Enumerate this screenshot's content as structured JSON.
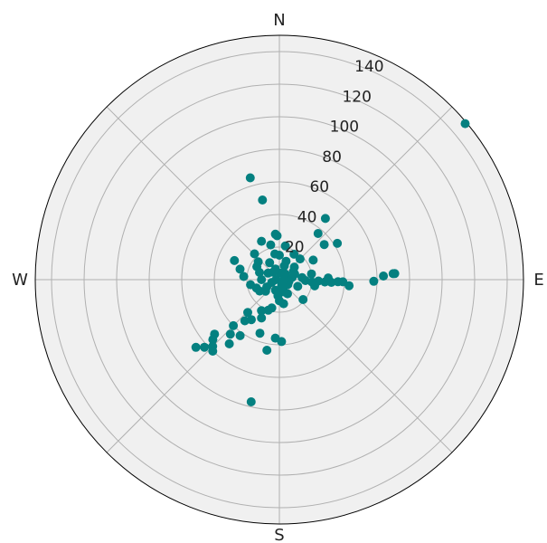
{
  "chart_data": {
    "type": "scatter",
    "projection": "polar",
    "theta_direction": "clockwise",
    "theta_zero": "north",
    "directions": {
      "n": "N",
      "e": "E",
      "s": "S",
      "w": "W"
    },
    "rmax": 150,
    "r_ticks": [
      20,
      40,
      60,
      80,
      100,
      120,
      140
    ],
    "r_tick_labels": [
      "20",
      "40",
      "60",
      "80",
      "100",
      "120",
      "140"
    ],
    "angle_gridlines_deg": [
      0,
      45,
      90,
      135,
      180,
      225,
      270,
      315
    ],
    "grid": true,
    "colors": {
      "marker": "#048080",
      "background": "#f0f0f0",
      "grid": "#b0b0b0",
      "frame": "#000000"
    },
    "series": [
      {
        "points": [
          {
            "r": 65,
            "theta": 344
          },
          {
            "r": 50,
            "theta": 348
          },
          {
            "r": 28,
            "theta": 355
          },
          {
            "r": 27,
            "theta": 357
          },
          {
            "r": 22,
            "theta": 346
          },
          {
            "r": 26,
            "theta": 335
          },
          {
            "r": 22,
            "theta": 316
          },
          {
            "r": 15,
            "theta": 0
          },
          {
            "r": 12,
            "theta": 20
          },
          {
            "r": 18,
            "theta": 30
          },
          {
            "r": 47,
            "theta": 37
          },
          {
            "r": 37,
            "theta": 40
          },
          {
            "r": 35,
            "theta": 52
          },
          {
            "r": 42,
            "theta": 58
          },
          {
            "r": 149,
            "theta": 50
          },
          {
            "r": 10,
            "theta": 60
          },
          {
            "r": 8,
            "theta": 80
          },
          {
            "r": 14,
            "theta": 85
          },
          {
            "r": 16,
            "theta": 92
          },
          {
            "r": 20,
            "theta": 94
          },
          {
            "r": 24,
            "theta": 92
          },
          {
            "r": 28,
            "theta": 93
          },
          {
            "r": 30,
            "theta": 88
          },
          {
            "r": 32,
            "theta": 93
          },
          {
            "r": 36,
            "theta": 92
          },
          {
            "r": 39,
            "theta": 92
          },
          {
            "r": 43,
            "theta": 95
          },
          {
            "r": 58,
            "theta": 91
          },
          {
            "r": 64,
            "theta": 88
          },
          {
            "r": 70,
            "theta": 87
          },
          {
            "r": 71,
            "theta": 87
          },
          {
            "r": 10,
            "theta": 70
          },
          {
            "r": 6,
            "theta": 100
          },
          {
            "r": 12,
            "theta": 110
          },
          {
            "r": 5,
            "theta": 140
          },
          {
            "r": 8,
            "theta": 160
          },
          {
            "r": 10,
            "theta": 185
          },
          {
            "r": 18,
            "theta": 195
          },
          {
            "r": 20,
            "theta": 200
          },
          {
            "r": 22,
            "theta": 210
          },
          {
            "r": 30,
            "theta": 215
          },
          {
            "r": 33,
            "theta": 220
          },
          {
            "r": 40,
            "theta": 225
          },
          {
            "r": 45,
            "theta": 222
          },
          {
            "r": 50,
            "theta": 218
          },
          {
            "r": 52,
            "theta": 230
          },
          {
            "r": 55,
            "theta": 228
          },
          {
            "r": 58,
            "theta": 225
          },
          {
            "r": 62,
            "theta": 228
          },
          {
            "r": 66,
            "theta": 231
          },
          {
            "r": 60,
            "theta": 223
          },
          {
            "r": 44,
            "theta": 190
          },
          {
            "r": 38,
            "theta": 178
          },
          {
            "r": 36,
            "theta": 184
          },
          {
            "r": 35,
            "theta": 200
          },
          {
            "r": 42,
            "theta": 215
          },
          {
            "r": 28,
            "theta": 224
          },
          {
            "r": 77,
            "theta": 193
          },
          {
            "r": 15,
            "theta": 250
          },
          {
            "r": 18,
            "theta": 260
          },
          {
            "r": 22,
            "theta": 275
          },
          {
            "r": 25,
            "theta": 285
          },
          {
            "r": 30,
            "theta": 293
          },
          {
            "r": 17,
            "theta": 310
          },
          {
            "r": 12,
            "theta": 330
          },
          {
            "r": 8,
            "theta": 300
          },
          {
            "r": 6,
            "theta": 320
          },
          {
            "r": 4,
            "theta": 10
          },
          {
            "r": 5,
            "theta": 45
          },
          {
            "r": 6,
            "theta": 120
          },
          {
            "r": 7,
            "theta": 200
          },
          {
            "r": 9,
            "theta": 240
          },
          {
            "r": 11,
            "theta": 270
          },
          {
            "r": 13,
            "theta": 180
          },
          {
            "r": 10,
            "theta": 150
          },
          {
            "r": 14,
            "theta": 240
          },
          {
            "r": 16,
            "theta": 300
          },
          {
            "r": 12,
            "theta": 50
          },
          {
            "r": 3,
            "theta": 90
          },
          {
            "r": 2,
            "theta": 270
          },
          {
            "r": 18,
            "theta": 45
          },
          {
            "r": 20,
            "theta": 80
          },
          {
            "r": 22,
            "theta": 100
          },
          {
            "r": 24,
            "theta": 60
          },
          {
            "r": 19,
            "theta": 130
          },
          {
            "r": 15,
            "theta": 170
          },
          {
            "r": 26,
            "theta": 205
          },
          {
            "r": 9,
            "theta": 20
          },
          {
            "r": 7,
            "theta": 340
          },
          {
            "r": 21,
            "theta": 10
          },
          {
            "r": 16,
            "theta": 350
          },
          {
            "r": 11,
            "theta": 230
          },
          {
            "r": 13,
            "theta": 290
          },
          {
            "r": 4,
            "theta": 160
          },
          {
            "r": 5,
            "theta": 250
          }
        ]
      }
    ]
  }
}
